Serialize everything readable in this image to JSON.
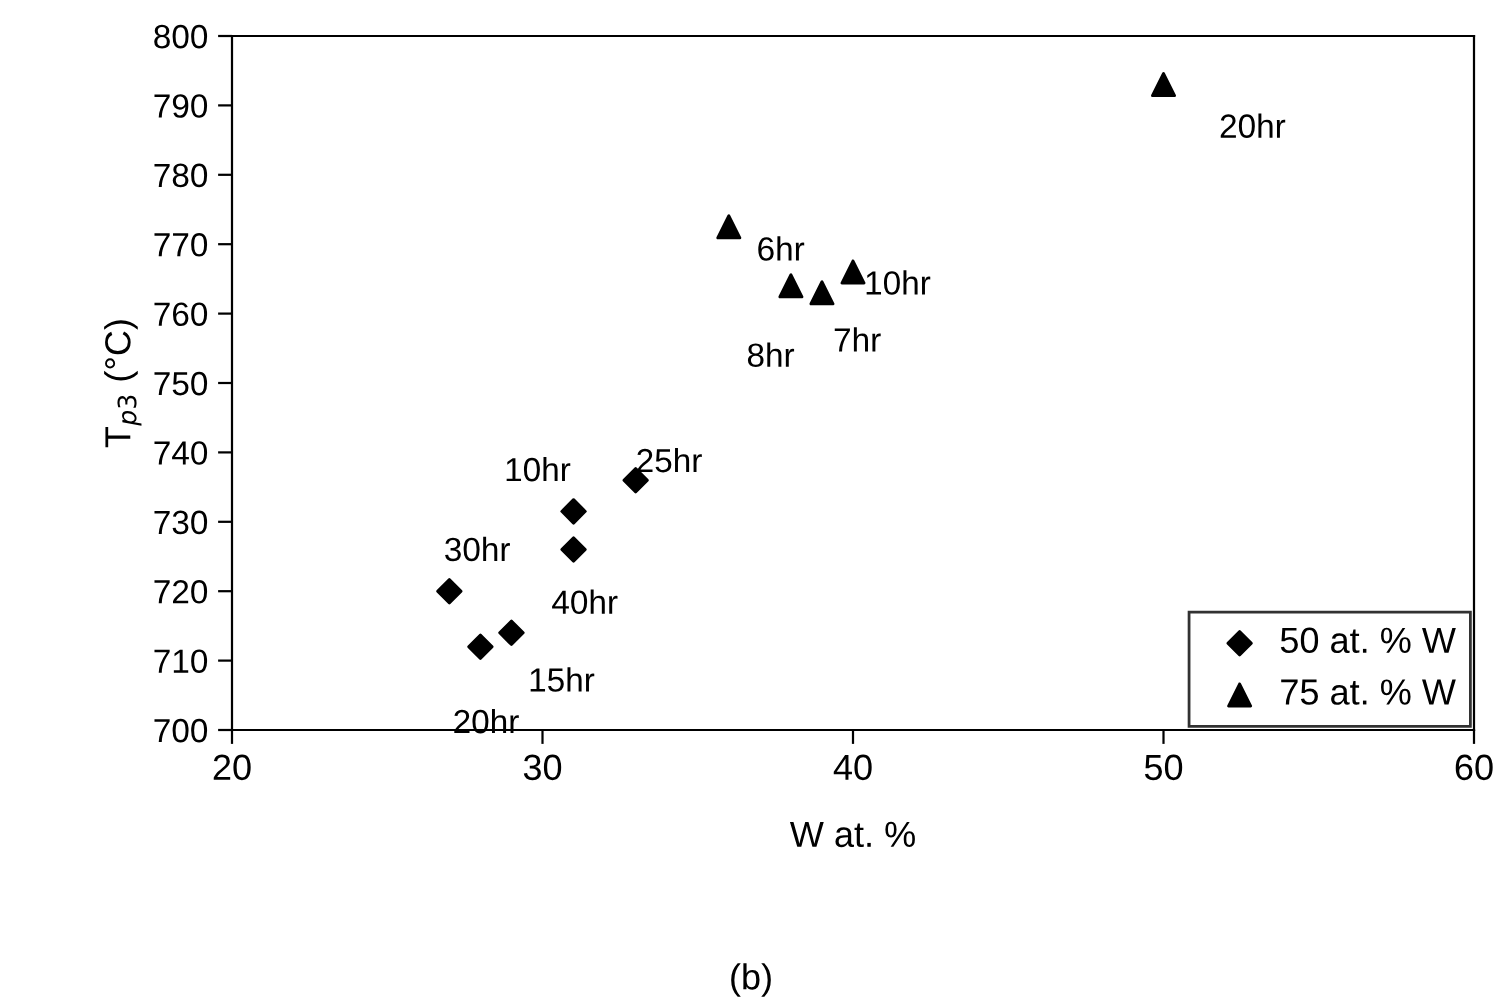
{
  "chart_data": {
    "type": "scatter",
    "xlabel": "W at. %",
    "ylabel": "T$_{p3}$ (°C)",
    "series": [
      {
        "name": "50 at. % W",
        "color": "#000000",
        "marker": "diamond",
        "x": [
          31,
          33,
          27,
          31,
          28,
          29
        ],
        "values": [
          731.5,
          736,
          720,
          726,
          712,
          714
        ]
      },
      {
        "name": "75 at. % W",
        "color": "#000000",
        "marker": "triangle",
        "x": [
          50,
          36,
          40,
          39,
          38
        ],
        "values": [
          793,
          772.5,
          766,
          763,
          764
        ]
      }
    ],
    "xlim": [
      20,
      60
    ],
    "xticks": [
      20,
      30,
      40,
      50,
      60
    ],
    "ylim": [
      700,
      800
    ],
    "yticks": [
      700,
      710,
      720,
      730,
      740,
      750,
      760,
      770,
      780,
      790,
      800
    ],
    "grid": false,
    "legend": "bottom right",
    "annotations": [
      {
        "text": "10hr",
        "x": 31,
        "y": 731.5
      },
      {
        "text": "25hr",
        "x": 33,
        "y": 736
      },
      {
        "text": "30hr",
        "x": 27,
        "y": 720
      },
      {
        "text": "40hr",
        "x": 31,
        "y": 726
      },
      {
        "text": "20hr",
        "x": 28,
        "y": 712
      },
      {
        "text": "15hr",
        "x": 29,
        "y": 714
      },
      {
        "text": "20hr",
        "x": 50,
        "y": 793
      },
      {
        "text": "6hr",
        "x": 36,
        "y": 772.5
      },
      {
        "text": "10hr",
        "x": 40,
        "y": 766
      },
      {
        "text": "7hr",
        "x": 39,
        "y": 763
      },
      {
        "text": "8hr",
        "x": 38,
        "y": 764
      },
      "(b)"
    ]
  }
}
